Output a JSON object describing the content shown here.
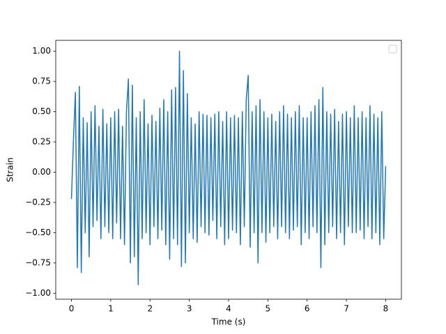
{
  "chart_data": {
    "type": "line",
    "xlabel": "Time (s)",
    "ylabel": "Strain",
    "color": "#1f77b4",
    "x": [
      0,
      0.05,
      0.1,
      0.15,
      0.2,
      0.25,
      0.3,
      0.35,
      0.4,
      0.45,
      0.5,
      0.55,
      0.6,
      0.65,
      0.7,
      0.75,
      0.8,
      0.85,
      0.9,
      0.95,
      1,
      1.05,
      1.1,
      1.15,
      1.2,
      1.25,
      1.3,
      1.35,
      1.4,
      1.45,
      1.5,
      1.55,
      1.6,
      1.65,
      1.7,
      1.75,
      1.8,
      1.85,
      1.9,
      1.95,
      2,
      2.05,
      2.1,
      2.15,
      2.2,
      2.25,
      2.3,
      2.35,
      2.4,
      2.45,
      2.5,
      2.55,
      2.6,
      2.65,
      2.7,
      2.75,
      2.8,
      2.85,
      2.9,
      2.95,
      3,
      3.05,
      3.1,
      3.15,
      3.2,
      3.25,
      3.3,
      3.35,
      3.4,
      3.45,
      3.5,
      3.55,
      3.6,
      3.65,
      3.7,
      3.75,
      3.8,
      3.85,
      3.9,
      3.95,
      4,
      4.05,
      4.1,
      4.15,
      4.2,
      4.25,
      4.3,
      4.35,
      4.4,
      4.45,
      4.5,
      4.55,
      4.6,
      4.65,
      4.7,
      4.75,
      4.8,
      4.85,
      4.9,
      4.95,
      5,
      5.05,
      5.1,
      5.15,
      5.2,
      5.25,
      5.3,
      5.35,
      5.4,
      5.45,
      5.5,
      5.55,
      5.6,
      5.65,
      5.7,
      5.75,
      5.8,
      5.85,
      5.9,
      5.95,
      6,
      6.05,
      6.1,
      6.15,
      6.2,
      6.25,
      6.3,
      6.35,
      6.4,
      6.45,
      6.5,
      6.55,
      6.6,
      6.65,
      6.7,
      6.75,
      6.8,
      6.85,
      6.9,
      6.95,
      7,
      7.05,
      7.1,
      7.15,
      7.2,
      7.25,
      7.3,
      7.35,
      7.4,
      7.45,
      7.5,
      7.55,
      7.6,
      7.65,
      7.7,
      7.75,
      7.8,
      7.85,
      7.9,
      7.95,
      8
    ],
    "values": [
      -0.22,
      0.26,
      0.66,
      -0.79,
      0.71,
      -0.83,
      0.45,
      -0.5,
      0.41,
      -0.7,
      0.5,
      -0.45,
      0.55,
      -0.4,
      0.38,
      -0.55,
      0.52,
      -0.45,
      0.4,
      -0.5,
      0.45,
      -0.55,
      0.5,
      -0.42,
      0.52,
      -0.55,
      0.38,
      -0.6,
      0.5,
      0.77,
      -0.75,
      0.72,
      -0.7,
      0.45,
      -0.93,
      0.5,
      -0.55,
      0.6,
      -0.5,
      0.4,
      -0.6,
      0.47,
      -0.45,
      0.42,
      -0.55,
      0.53,
      -0.48,
      0.6,
      -0.6,
      0.5,
      -0.72,
      0.68,
      -0.55,
      0.7,
      -0.6,
      1.0,
      -0.78,
      0.84,
      -0.75,
      0.65,
      -0.5,
      0.45,
      -0.55,
      0.4,
      -0.58,
      0.5,
      -0.45,
      0.48,
      -0.5,
      0.47,
      -0.52,
      0.45,
      -0.4,
      0.48,
      -0.55,
      0.5,
      -0.45,
      0.42,
      -0.6,
      0.5,
      -0.55,
      0.45,
      -0.48,
      0.47,
      -0.5,
      0.45,
      -0.6,
      0.5,
      -0.45,
      0.6,
      0.8,
      -0.62,
      0.5,
      -0.5,
      0.55,
      -0.75,
      0.6,
      -0.5,
      0.5,
      -0.58,
      0.45,
      -0.5,
      0.48,
      -0.45,
      0.42,
      -0.55,
      0.5,
      -0.45,
      0.55,
      -0.5,
      0.48,
      -0.55,
      0.45,
      -0.48,
      0.5,
      -0.45,
      0.55,
      -0.6,
      0.45,
      -0.5,
      0.45,
      -0.55,
      0.5,
      -0.45,
      0.55,
      -0.5,
      0.6,
      -0.79,
      0.7,
      -0.6,
      0.5,
      -0.5,
      0.48,
      -0.45,
      0.52,
      -0.55,
      0.42,
      -0.5,
      0.48,
      -0.6,
      0.5,
      -0.45,
      0.45,
      -0.5,
      0.55,
      -0.5,
      0.45,
      -0.48,
      0.5,
      -0.55,
      0.45,
      -0.45,
      0.55,
      -0.55,
      0.48,
      -0.5,
      0.45,
      -0.6,
      0.5,
      -0.55,
      0.05
    ],
    "xlim": [
      -0.4,
      8.4
    ],
    "ylim": [
      -1.05,
      1.09
    ],
    "xticks": [
      0,
      1,
      2,
      3,
      4,
      5,
      6,
      7,
      8
    ],
    "yticks": [
      {
        "value": -1,
        "label": "−1.00"
      },
      {
        "value": -0.75,
        "label": "−0.75"
      },
      {
        "value": -0.5,
        "label": "−0.50"
      },
      {
        "value": -0.25,
        "label": "−0.25"
      },
      {
        "value": 0,
        "label": "0.00"
      },
      {
        "value": 0.25,
        "label": "0.25"
      },
      {
        "value": 0.5,
        "label": "0.50"
      },
      {
        "value": 0.75,
        "label": "0.75"
      },
      {
        "value": 1,
        "label": "1.00"
      }
    ]
  }
}
